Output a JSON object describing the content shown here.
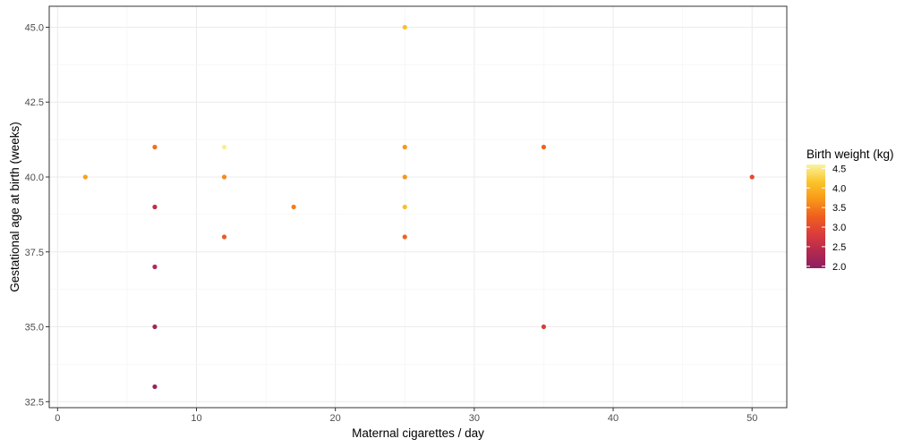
{
  "chart_data": {
    "type": "scatter",
    "title": "",
    "xlabel": "Maternal cigarettes / day",
    "ylabel": "Gestational age at birth (weeks)",
    "xlim": [
      -0.6,
      52.5
    ],
    "ylim": [
      32.3,
      45.7
    ],
    "x_ticks": [
      0,
      10,
      20,
      30,
      40,
      50
    ],
    "x_tick_labels": [
      "0",
      "10",
      "20",
      "30",
      "40",
      "50"
    ],
    "y_ticks": [
      32.5,
      35.0,
      37.5,
      40.0,
      42.5,
      45.0
    ],
    "y_tick_labels": [
      "32.5",
      "35.0",
      "37.5",
      "40.0",
      "42.5",
      "45.0"
    ],
    "grid": true,
    "legend": {
      "title": "Birth weight (kg)",
      "placement": "right",
      "range": [
        1.95,
        4.6
      ],
      "ticks": [
        2.0,
        2.5,
        3.0,
        3.5,
        4.0,
        4.5
      ],
      "tick_labels": [
        "2.0",
        "2.5",
        "3.0",
        "3.5",
        "4.0",
        "4.5"
      ]
    },
    "color_scale": [
      "#8b1f62",
      "#b5294e",
      "#dc3d3b",
      "#f05f1d",
      "#f9981a",
      "#fbc52a",
      "#f9f3a0"
    ],
    "points": [
      {
        "x": 2,
        "y": 40,
        "weight": 3.8
      },
      {
        "x": 7,
        "y": 41,
        "weight": 3.4
      },
      {
        "x": 7,
        "y": 39,
        "weight": 2.5
      },
      {
        "x": 7,
        "y": 37,
        "weight": 2.4
      },
      {
        "x": 7,
        "y": 35,
        "weight": 2.2
      },
      {
        "x": 7,
        "y": 33,
        "weight": 2.1
      },
      {
        "x": 12,
        "y": 41,
        "weight": 4.55
      },
      {
        "x": 12,
        "y": 40,
        "weight": 3.6
      },
      {
        "x": 12,
        "y": 38,
        "weight": 3.2
      },
      {
        "x": 17,
        "y": 39,
        "weight": 3.5
      },
      {
        "x": 25,
        "y": 45,
        "weight": 4.1
      },
      {
        "x": 25,
        "y": 41,
        "weight": 3.7
      },
      {
        "x": 25,
        "y": 40,
        "weight": 3.7
      },
      {
        "x": 25,
        "y": 39,
        "weight": 4.1
      },
      {
        "x": 25,
        "y": 38,
        "weight": 3.3
      },
      {
        "x": 35,
        "y": 41,
        "weight": 3.3
      },
      {
        "x": 35,
        "y": 35,
        "weight": 2.8
      },
      {
        "x": 50,
        "y": 40,
        "weight": 3.0
      }
    ]
  }
}
